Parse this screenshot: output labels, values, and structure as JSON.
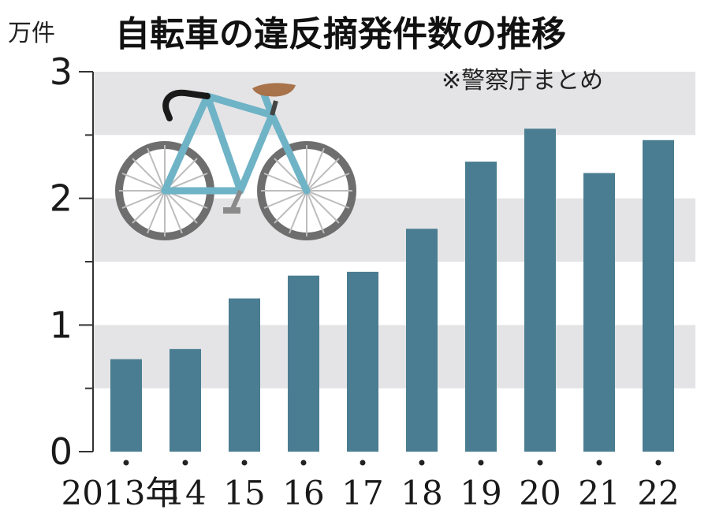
{
  "chart_data": {
    "type": "bar",
    "title": "自転車の違反摘発件数の推移",
    "unit_label": "万件",
    "source_note": "※警察庁まとめ",
    "categories": [
      "2013年",
      "14",
      "15",
      "16",
      "17",
      "18",
      "19",
      "20",
      "21",
      "22"
    ],
    "values": [
      0.73,
      0.81,
      1.21,
      1.39,
      1.42,
      1.76,
      2.29,
      2.55,
      2.2,
      2.46
    ],
    "ylim": [
      0,
      3
    ],
    "yticks": [
      "0",
      "1",
      "2",
      "3"
    ],
    "band_color": "#e4e4e6",
    "bar_color": "#4a7d91",
    "illustration": "bicycle"
  }
}
